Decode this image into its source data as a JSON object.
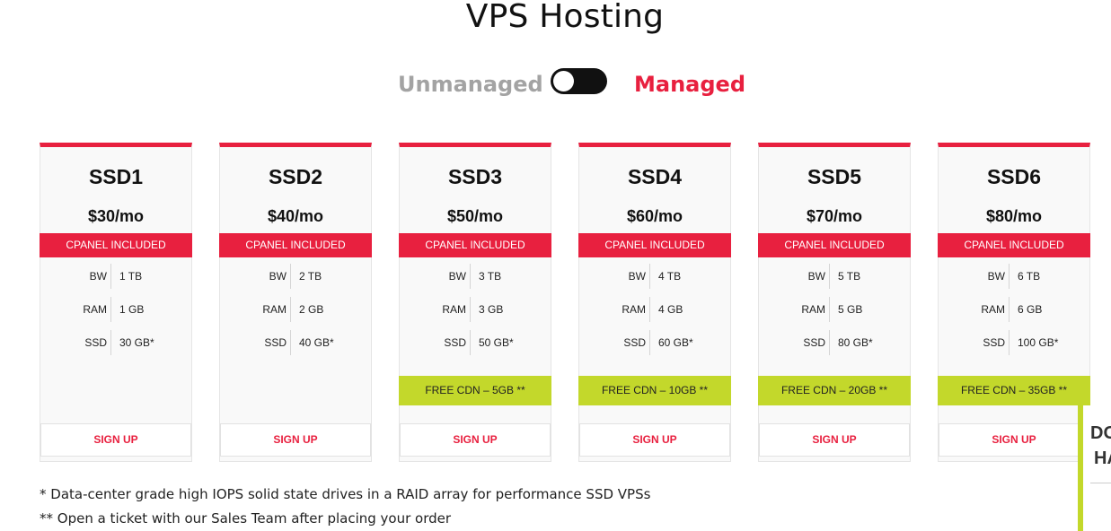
{
  "page": {
    "title": "VPS Hosting"
  },
  "toggle": {
    "left_label": "Unmanaged",
    "right_label": "Managed",
    "state": "unmanaged"
  },
  "colors": {
    "accent": "#e8203f",
    "cdn": "#c3d82b",
    "muted": "#a3a3a3"
  },
  "spec_labels": {
    "bw": "BW",
    "ram": "RAM",
    "ssd": "SSD"
  },
  "plans": [
    {
      "name": "SSD1",
      "price": "$30/mo",
      "badge": "CPANEL INCLUDED",
      "bw": "1 TB",
      "ram": "1 GB",
      "ssd": "30 GB*",
      "cdn": "",
      "cta": "SIGN UP"
    },
    {
      "name": "SSD2",
      "price": "$40/mo",
      "badge": "CPANEL INCLUDED",
      "bw": "2 TB",
      "ram": "2 GB",
      "ssd": "40 GB*",
      "cdn": "",
      "cta": "SIGN UP"
    },
    {
      "name": "SSD3",
      "price": "$50/mo",
      "badge": "CPANEL INCLUDED",
      "bw": "3 TB",
      "ram": "3 GB",
      "ssd": "50 GB*",
      "cdn": "FREE CDN – 5GB **",
      "cta": "SIGN UP"
    },
    {
      "name": "SSD4",
      "price": "$60/mo",
      "badge": "CPANEL INCLUDED",
      "bw": "4 TB",
      "ram": "4 GB",
      "ssd": "60 GB*",
      "cdn": "FREE CDN – 10GB **",
      "cta": "SIGN UP"
    },
    {
      "name": "SSD5",
      "price": "$70/mo",
      "badge": "CPANEL INCLUDED",
      "bw": "5 TB",
      "ram": "5 GB",
      "ssd": "80 GB*",
      "cdn": "FREE CDN – 20GB **",
      "cta": "SIGN UP"
    },
    {
      "name": "SSD6",
      "price": "$80/mo",
      "badge": "CPANEL INCLUDED",
      "bw": "6 TB",
      "ram": "6 GB",
      "ssd": "100 GB*",
      "cdn": "FREE CDN – 35GB **",
      "cta": "SIGN UP"
    }
  ],
  "footnotes": [
    "* Data-center grade high IOPS solid state drives in a RAID array for performance SSD VPSs",
    "** Open a ticket with our Sales Team after placing your order"
  ],
  "side_widget": {
    "line1": "DO",
    "line2": "HA"
  }
}
